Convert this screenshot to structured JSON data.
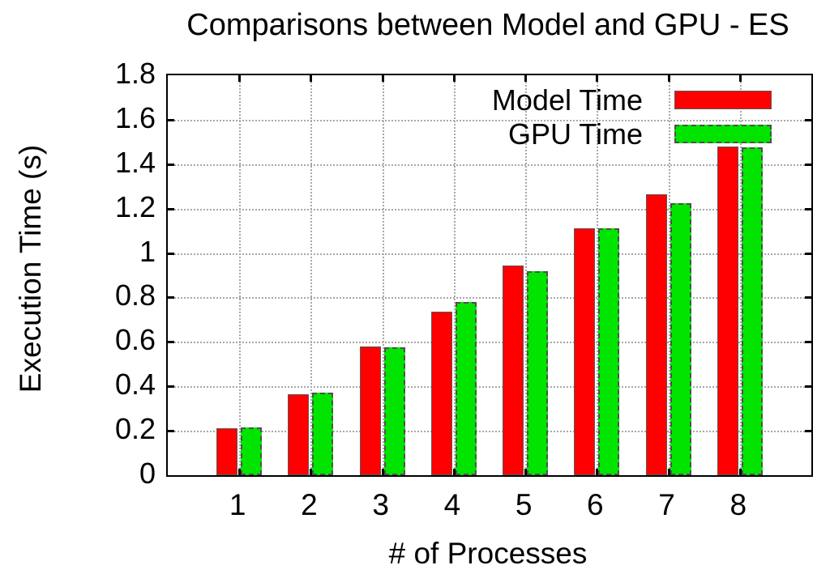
{
  "title": "Comparisons between Model and GPU - ES",
  "chart_data": {
    "type": "bar",
    "title": "Comparisons between Model and GPU - ES",
    "xlabel": "# of Processes",
    "ylabel": "Execution Time (s)",
    "categories": [
      "1",
      "2",
      "3",
      "4",
      "5",
      "6",
      "7",
      "8"
    ],
    "series": [
      {
        "name": "Model Time",
        "color": "#ff0000",
        "values": [
          0.21,
          0.365,
          0.58,
          0.735,
          0.945,
          1.11,
          1.265,
          1.48
        ]
      },
      {
        "name": "GPU Time",
        "color": "#00e400",
        "values": [
          0.215,
          0.37,
          0.575,
          0.78,
          0.92,
          1.11,
          1.225,
          1.475
        ]
      }
    ],
    "ylim": [
      0,
      1.8
    ],
    "ytick_step": 0.2,
    "ytick_labels": [
      "0",
      "0.2",
      "0.4",
      "0.6",
      "0.8",
      "1",
      "1.2",
      "1.4",
      "1.6",
      "1.8"
    ],
    "grid": true,
    "legend_position": "top-right"
  },
  "colors": {
    "model_bar": "#ff0000",
    "gpu_bar": "#00e400",
    "grid": "#a8a8a8",
    "axis": "#000000",
    "background": "#ffffff"
  }
}
